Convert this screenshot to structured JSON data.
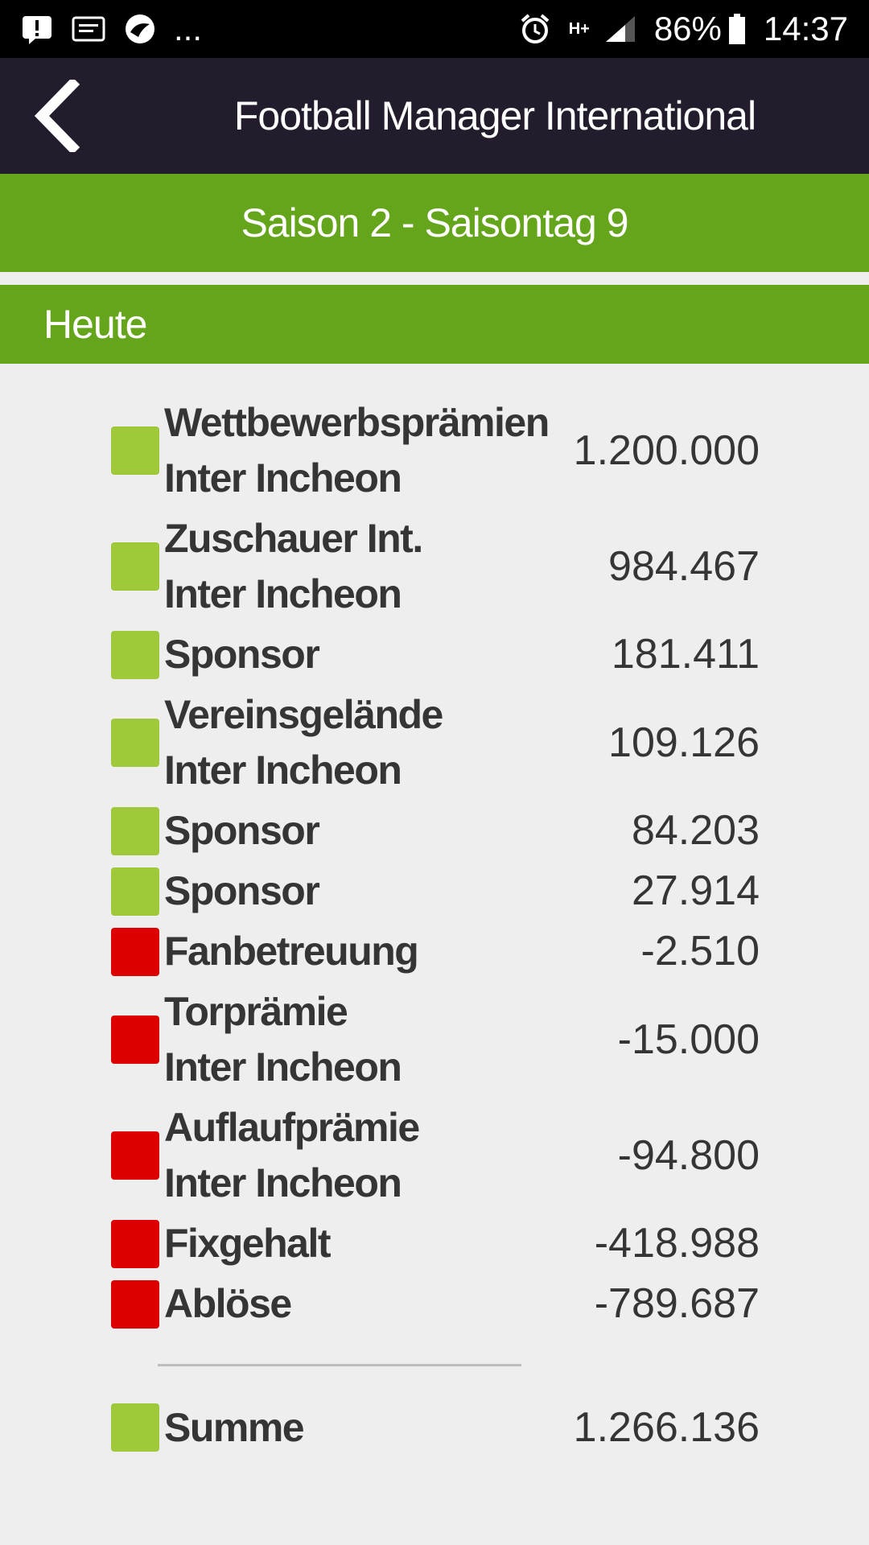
{
  "status_bar": {
    "notification_icons": [
      "alert-icon",
      "note-icon",
      "app-icon"
    ],
    "more": "...",
    "network": "H+",
    "battery": "86%",
    "time": "14:37"
  },
  "toolbar": {
    "title": "Football Manager International"
  },
  "season": {
    "label": "Saison 2 - Saisontag 9"
  },
  "section": {
    "label": "Heute"
  },
  "colors": {
    "positive": "#9fc83b",
    "negative": "#dd0000",
    "header_green": "#65a51b",
    "toolbar": "#231c2c"
  },
  "items": [
    {
      "line1": "Wettbewerbsprämien",
      "line2": "Inter Incheon",
      "amount": "1.200.000",
      "type": "positive"
    },
    {
      "line1": "Zuschauer Int.",
      "line2": "Inter Incheon",
      "amount": "984.467",
      "type": "positive"
    },
    {
      "line1": "Sponsor",
      "line2": "",
      "amount": "181.411",
      "type": "positive"
    },
    {
      "line1": "Vereinsgelände",
      "line2": "Inter Incheon",
      "amount": "109.126",
      "type": "positive"
    },
    {
      "line1": "Sponsor",
      "line2": "",
      "amount": "84.203",
      "type": "positive"
    },
    {
      "line1": "Sponsor",
      "line2": "",
      "amount": "27.914",
      "type": "positive"
    },
    {
      "line1": "Fanbetreuung",
      "line2": "",
      "amount": "-2.510",
      "type": "negative"
    },
    {
      "line1": "Torprämie",
      "line2": "Inter Incheon",
      "amount": "-15.000",
      "type": "negative"
    },
    {
      "line1": "Auflaufprämie",
      "line2": "Inter Incheon",
      "amount": "-94.800",
      "type": "negative"
    },
    {
      "line1": "Fixgehalt",
      "line2": "",
      "amount": "-418.988",
      "type": "negative"
    },
    {
      "line1": "Ablöse",
      "line2": "",
      "amount": "-789.687",
      "type": "negative"
    }
  ],
  "total": {
    "label": "Summe",
    "amount": "1.266.136",
    "type": "positive"
  }
}
